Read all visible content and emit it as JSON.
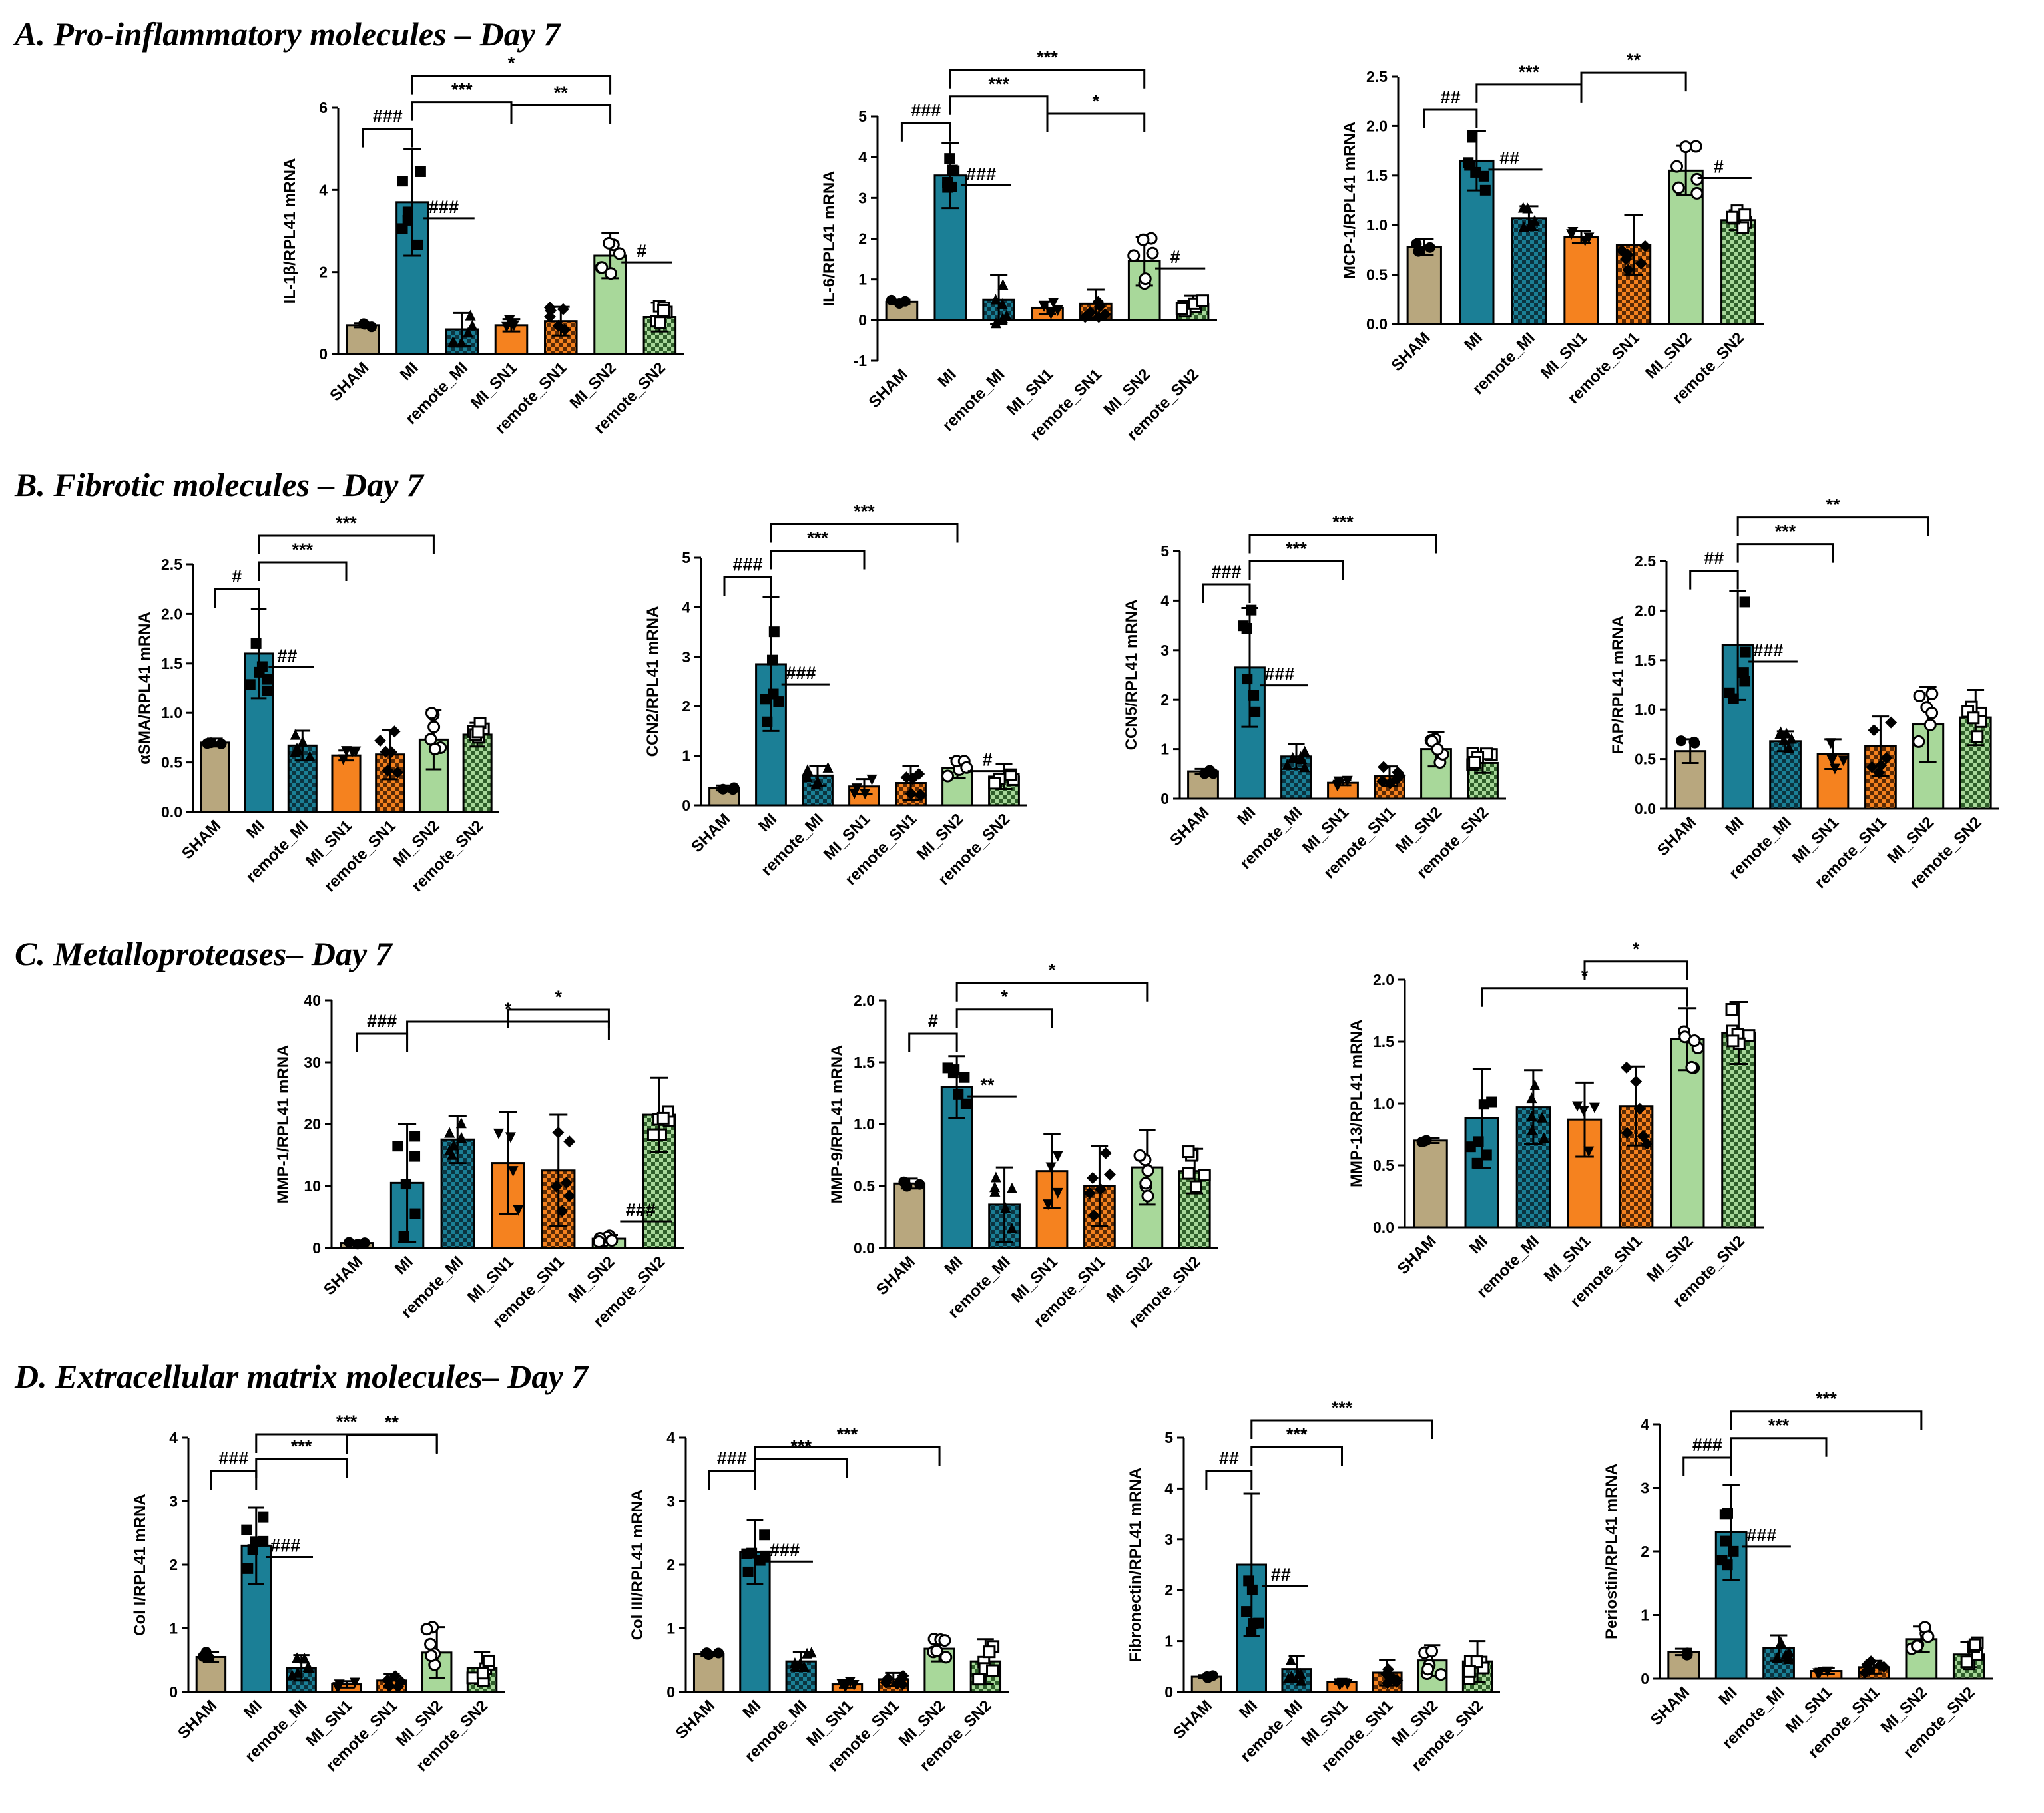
{
  "categories": [
    "SHAM",
    "MI",
    "remote_MI",
    "MI_SN1",
    "remote_SN1",
    "MI_SN2",
    "remote_SN2"
  ],
  "colors": {
    "SHAM": "#b8a77e",
    "MI": "#1b7f96",
    "remote_MI": "#1b7f96",
    "MI_SN1": "#f5821f",
    "remote_SN1": "#f5821f",
    "MI_SN2": "#a8d89a",
    "remote_SN2": "#a8d89a"
  },
  "sections": [
    {
      "title": "A. Pro-inflammatory molecules – Day 7"
    },
    {
      "title": "B. Fibrotic molecules – Day 7"
    },
    {
      "title": "C. Metalloproteases– Day 7"
    },
    {
      "title": "D. Extracellular matrix molecules– Day 7"
    }
  ],
  "chart_data": [
    {
      "type": "bar",
      "ylabel": "IL-1β/RPL41 mRNA",
      "ylim": [
        0,
        6
      ],
      "yticks": [
        0,
        2,
        4,
        6
      ],
      "values": [
        0.7,
        3.7,
        0.6,
        0.7,
        0.8,
        2.4,
        0.9
      ],
      "errors": [
        0.05,
        1.3,
        0.4,
        0.15,
        0.35,
        0.55,
        0.35
      ],
      "annotations": [
        {
          "from": 0,
          "to": 1,
          "label": "###"
        },
        {
          "from": 1,
          "to": 3,
          "label": "***"
        },
        {
          "from": 1,
          "to": 5,
          "label": "*"
        },
        {
          "from": 3,
          "to": 5,
          "label": "**"
        },
        {
          "from": 1,
          "to": 2,
          "label": "###",
          "style": "line"
        },
        {
          "from": 5,
          "to": 6,
          "label": "#",
          "style": "line"
        }
      ]
    },
    {
      "type": "bar",
      "ylabel": "IL-6/RPL41 mRNA",
      "ylim": [
        -1,
        5
      ],
      "yticks": [
        -1,
        0,
        1,
        2,
        3,
        4,
        5
      ],
      "values": [
        0.45,
        3.55,
        0.5,
        0.3,
        0.4,
        1.45,
        0.4
      ],
      "errors": [
        0.05,
        0.8,
        0.6,
        0.15,
        0.35,
        0.6,
        0.2
      ],
      "annotations": [
        {
          "from": 0,
          "to": 1,
          "label": "###"
        },
        {
          "from": 1,
          "to": 3,
          "label": "***"
        },
        {
          "from": 1,
          "to": 5,
          "label": "***"
        },
        {
          "from": 3,
          "to": 5,
          "label": "*"
        },
        {
          "from": 1,
          "to": 2,
          "label": "###",
          "style": "line"
        },
        {
          "from": 5,
          "to": 6,
          "label": "#",
          "style": "line"
        }
      ]
    },
    {
      "type": "bar",
      "ylabel": "MCP-1/RPL41 mRNA",
      "ylim": [
        0,
        2.5
      ],
      "yticks": [
        0,
        0.5,
        1.0,
        1.5,
        2.0,
        2.5
      ],
      "values": [
        0.78,
        1.65,
        1.07,
        0.88,
        0.8,
        1.55,
        1.05
      ],
      "errors": [
        0.08,
        0.3,
        0.12,
        0.06,
        0.3,
        0.25,
        0.1
      ],
      "annotations": [
        {
          "from": 0,
          "to": 1,
          "label": "##"
        },
        {
          "from": 1,
          "to": 3,
          "label": "***"
        },
        {
          "from": 3,
          "to": 5,
          "label": "**"
        },
        {
          "from": 1,
          "to": 2,
          "label": "##",
          "style": "line"
        },
        {
          "from": 5,
          "to": 6,
          "label": "#",
          "style": "line"
        }
      ]
    },
    {
      "type": "bar",
      "ylabel": "αSMA/RPL41 mRNA",
      "ylim": [
        0,
        2.5
      ],
      "yticks": [
        0,
        0.5,
        1.0,
        1.5,
        2.0,
        2.5
      ],
      "values": [
        0.7,
        1.6,
        0.67,
        0.57,
        0.58,
        0.73,
        0.78
      ],
      "errors": [
        0.04,
        0.45,
        0.15,
        0.05,
        0.25,
        0.3,
        0.12
      ],
      "annotations": [
        {
          "from": 0,
          "to": 1,
          "label": "#"
        },
        {
          "from": 1,
          "to": 3,
          "label": "***"
        },
        {
          "from": 1,
          "to": 5,
          "label": "***"
        },
        {
          "from": 1,
          "to": 2,
          "label": "##",
          "style": "line"
        }
      ]
    },
    {
      "type": "bar",
      "ylabel": "CCN2/RPL41 mRNA",
      "ylim": [
        0,
        5
      ],
      "yticks": [
        0,
        1,
        2,
        3,
        4,
        5
      ],
      "values": [
        0.35,
        2.85,
        0.6,
        0.38,
        0.45,
        0.75,
        0.58
      ],
      "errors": [
        0.05,
        1.35,
        0.2,
        0.15,
        0.35,
        0.2,
        0.25
      ],
      "annotations": [
        {
          "from": 0,
          "to": 1,
          "label": "###"
        },
        {
          "from": 1,
          "to": 3,
          "label": "***"
        },
        {
          "from": 1,
          "to": 5,
          "label": "***"
        },
        {
          "from": 1,
          "to": 2,
          "label": "###",
          "style": "line"
        },
        {
          "from": 5,
          "to": 6,
          "label": "#",
          "style": "line"
        }
      ]
    },
    {
      "type": "bar",
      "ylabel": "CCN5/RPL41 mRNA",
      "ylim": [
        0,
        5
      ],
      "yticks": [
        0,
        1,
        2,
        3,
        4,
        5
      ],
      "values": [
        0.55,
        2.65,
        0.85,
        0.32,
        0.45,
        1.0,
        0.72
      ],
      "errors": [
        0.05,
        1.2,
        0.25,
        0.05,
        0.2,
        0.35,
        0.2
      ],
      "annotations": [
        {
          "from": 0,
          "to": 1,
          "label": "###"
        },
        {
          "from": 1,
          "to": 3,
          "label": "***"
        },
        {
          "from": 1,
          "to": 5,
          "label": "***"
        },
        {
          "from": 1,
          "to": 2,
          "label": "###",
          "style": "line"
        }
      ]
    },
    {
      "type": "bar",
      "ylabel": "FAP/RPL41 mRNA",
      "ylim": [
        0,
        2.5
      ],
      "yticks": [
        0,
        0.5,
        1.0,
        1.5,
        2.0,
        2.5
      ],
      "values": [
        0.58,
        1.65,
        0.68,
        0.55,
        0.63,
        0.85,
        0.92
      ],
      "errors": [
        0.12,
        0.55,
        0.1,
        0.15,
        0.3,
        0.38,
        0.28
      ],
      "annotations": [
        {
          "from": 0,
          "to": 1,
          "label": "##"
        },
        {
          "from": 1,
          "to": 3,
          "label": "***"
        },
        {
          "from": 1,
          "to": 5,
          "label": "**"
        },
        {
          "from": 1,
          "to": 2,
          "label": "###",
          "style": "line"
        }
      ]
    },
    {
      "type": "bar",
      "ylabel": "MMP-1/RPL41 mRNA",
      "ylim": [
        0,
        40
      ],
      "yticks": [
        0,
        10,
        20,
        30,
        40
      ],
      "values": [
        0.8,
        10.5,
        17.5,
        13.7,
        12.5,
        1.5,
        21.5
      ],
      "errors": [
        0.2,
        9.5,
        3.8,
        8.2,
        9,
        0.6,
        6
      ],
      "annotations": [
        {
          "from": 0,
          "to": 1,
          "label": "###"
        },
        {
          "from": 1,
          "to": 5,
          "label": "*"
        },
        {
          "from": 3,
          "to": 5,
          "label": "*"
        },
        {
          "from": 5,
          "to": 6,
          "label": "###",
          "style": "line"
        }
      ]
    },
    {
      "type": "bar",
      "ylabel": "MMP-9/RPL41 mRNA",
      "ylim": [
        0,
        2.0
      ],
      "yticks": [
        0,
        0.5,
        1.0,
        1.5,
        2.0
      ],
      "values": [
        0.52,
        1.3,
        0.35,
        0.62,
        0.5,
        0.65,
        0.62
      ],
      "errors": [
        0.04,
        0.25,
        0.3,
        0.3,
        0.32,
        0.3,
        0.18
      ],
      "annotations": [
        {
          "from": 0,
          "to": 1,
          "label": "#"
        },
        {
          "from": 1,
          "to": 3,
          "label": "*"
        },
        {
          "from": 1,
          "to": 5,
          "label": "*"
        },
        {
          "from": 1,
          "to": 2,
          "label": "**",
          "style": "line"
        }
      ]
    },
    {
      "type": "bar",
      "ylabel": "MMP-13/RPL41 mRNA",
      "ylim": [
        0,
        2.0
      ],
      "yticks": [
        0,
        0.5,
        1.0,
        1.5,
        2.0
      ],
      "values": [
        0.7,
        0.88,
        0.97,
        0.87,
        0.98,
        1.52,
        1.57
      ],
      "errors": [
        0.02,
        0.4,
        0.3,
        0.3,
        0.32,
        0.25,
        0.25
      ],
      "annotations": [
        {
          "from": 1,
          "to": 5,
          "label": "*"
        },
        {
          "from": 3,
          "to": 5,
          "label": "*"
        }
      ]
    },
    {
      "type": "bar",
      "ylabel": "Col I/RPL41 mRNA",
      "ylim": [
        0,
        4
      ],
      "yticks": [
        0,
        1,
        2,
        3,
        4
      ],
      "values": [
        0.55,
        2.3,
        0.38,
        0.12,
        0.18,
        0.62,
        0.38
      ],
      "errors": [
        0.08,
        0.6,
        0.2,
        0.05,
        0.1,
        0.4,
        0.25
      ],
      "annotations": [
        {
          "from": 0,
          "to": 1,
          "label": "###"
        },
        {
          "from": 1,
          "to": 3,
          "label": "***"
        },
        {
          "from": 1,
          "to": 5,
          "label": "***"
        },
        {
          "from": 3,
          "to": 5,
          "label": "**"
        },
        {
          "from": 1,
          "to": 2,
          "label": "###",
          "style": "line"
        }
      ]
    },
    {
      "type": "bar",
      "ylabel": "Col III/RPL41 mRNA",
      "ylim": [
        0,
        4
      ],
      "yticks": [
        0,
        1,
        2,
        3,
        4
      ],
      "values": [
        0.6,
        2.2,
        0.48,
        0.12,
        0.2,
        0.68,
        0.48
      ],
      "errors": [
        0.03,
        0.5,
        0.15,
        0.05,
        0.1,
        0.2,
        0.35
      ],
      "annotations": [
        {
          "from": 0,
          "to": 1,
          "label": "###"
        },
        {
          "from": 1,
          "to": 3,
          "label": "***"
        },
        {
          "from": 1,
          "to": 5,
          "label": "***"
        },
        {
          "from": 1,
          "to": 2,
          "label": "###",
          "style": "line"
        }
      ]
    },
    {
      "type": "bar",
      "ylabel": "Fibronectin/RPL41 mRNA",
      "ylim": [
        0,
        5
      ],
      "yticks": [
        0,
        1,
        2,
        3,
        4,
        5
      ],
      "values": [
        0.3,
        2.5,
        0.45,
        0.2,
        0.38,
        0.62,
        0.6
      ],
      "errors": [
        0.03,
        1.4,
        0.25,
        0.05,
        0.25,
        0.3,
        0.4
      ],
      "annotations": [
        {
          "from": 0,
          "to": 1,
          "label": "##"
        },
        {
          "from": 1,
          "to": 3,
          "label": "***"
        },
        {
          "from": 1,
          "to": 5,
          "label": "***"
        },
        {
          "from": 1,
          "to": 2,
          "label": "##",
          "style": "line"
        }
      ]
    },
    {
      "type": "bar",
      "ylabel": "Periostin/RPL41 mRNA",
      "ylim": [
        0,
        4
      ],
      "yticks": [
        0,
        1,
        2,
        3,
        4
      ],
      "values": [
        0.42,
        2.3,
        0.48,
        0.12,
        0.18,
        0.62,
        0.38
      ],
      "errors": [
        0.05,
        0.75,
        0.2,
        0.05,
        0.1,
        0.2,
        0.2
      ],
      "annotations": [
        {
          "from": 0,
          "to": 1,
          "label": "###"
        },
        {
          "from": 1,
          "to": 3,
          "label": "***"
        },
        {
          "from": 1,
          "to": 5,
          "label": "***"
        },
        {
          "from": 1,
          "to": 2,
          "label": "###",
          "style": "line"
        }
      ]
    }
  ]
}
